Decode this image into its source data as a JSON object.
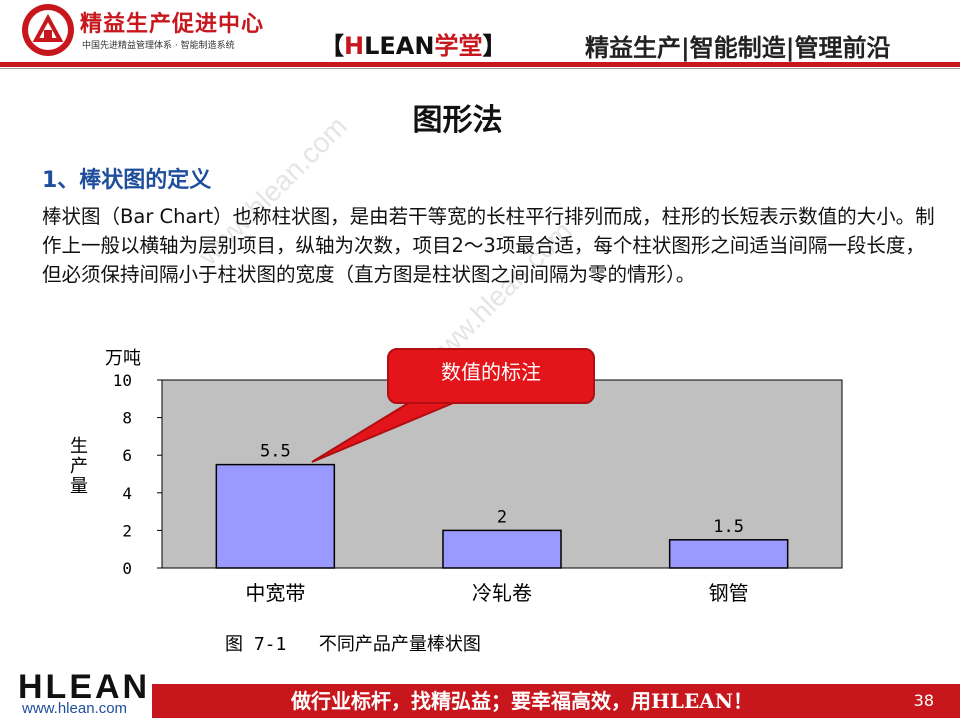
{
  "header": {
    "org_title": "精益生产促进中心",
    "org_subtitle": "中国先进精益管理体系 · 智能制造系统",
    "brand_open": "【",
    "brand_h": "H",
    "brand_lean": "LEAN",
    "brand_study": "学堂",
    "brand_close": "】",
    "slogan": "精益生产|智能制造|管理前沿"
  },
  "watermarks": [
    "www.hlean.com",
    "www.hlean.com"
  ],
  "slide": {
    "title": "图形法",
    "section_title": "1、棒状图的定义",
    "body": "棒状图（Bar Chart）也称柱状图，是由若干等宽的长柱平行排列而成，柱形的长短表示数值的大小。制作上一般以横轴为层别项目，纵轴为次数，项目2～3项最合适，每个柱状图形之间适当间隔一段长度，但必须保持间隔小于柱状图的宽度（直方图是柱状图之间间隔为零的情形）。"
  },
  "callout": {
    "text": "数值的标注"
  },
  "chart_data": {
    "type": "bar",
    "unit_label": "万吨",
    "ylabel": "生产量",
    "categories": [
      "中宽带",
      "冷轧卷",
      "钢管"
    ],
    "values": [
      5.5,
      2,
      1.5
    ],
    "value_labels": [
      "5.5",
      "2",
      "1.5"
    ],
    "ylim": [
      0,
      10
    ],
    "yticks": [
      0,
      2,
      4,
      6,
      8,
      10
    ],
    "caption": "图 7-1   不同产品产量棒状图",
    "colors": {
      "plot_bg": "#c0c0c0",
      "bar_fill": "#9999ff",
      "bar_stroke": "#000000"
    },
    "grid": false,
    "legend": "none"
  },
  "footer": {
    "logo": "HLEAN",
    "url": "www.hlean.com",
    "slogan": "做行业标杆，找精弘益；要幸福高效，用HLEAN！",
    "page_number": "38"
  },
  "colors": {
    "brand_red": "#c8161d",
    "section_blue": "#1f4e9c"
  }
}
